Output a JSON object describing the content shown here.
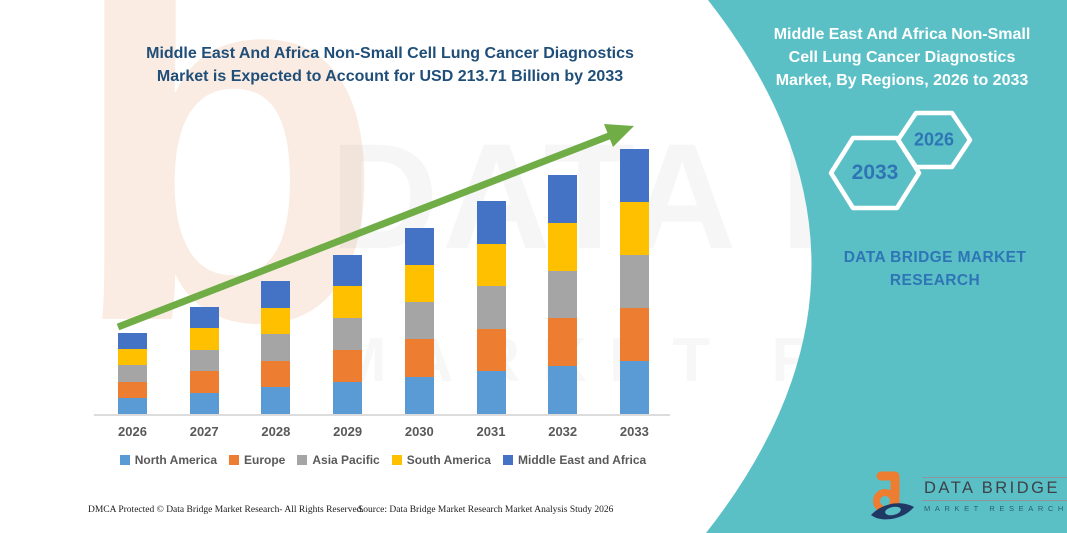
{
  "header": {
    "title_line1": "Middle East And Africa Non-Small Cell Lung Cancer Diagnostics",
    "title_line2": "Market is Expected to Account for USD 213.71 Billion by 2033",
    "title_color": "#1F4E79"
  },
  "chart_data": {
    "type": "bar",
    "stacked": true,
    "title": "Middle East And Africa Non-Small Cell Lung Cancer Diagnostics Market is Expected to Account for USD 213.71 Billion by 2033",
    "unit": "USD Billion",
    "categories": [
      "2026",
      "2027",
      "2028",
      "2029",
      "2030",
      "2031",
      "2032",
      "2033"
    ],
    "series": [
      {
        "name": "North America",
        "color": "#5B9BD5",
        "values": [
          13.0,
          17.2,
          21.4,
          25.6,
          30.0,
          34.2,
          38.4,
          42.7
        ]
      },
      {
        "name": "Europe",
        "color": "#ED7D31",
        "values": [
          13.0,
          17.2,
          21.4,
          25.6,
          30.0,
          34.2,
          38.4,
          42.7
        ]
      },
      {
        "name": "Asia Pacific",
        "color": "#A5A5A5",
        "values": [
          13.0,
          17.2,
          21.4,
          25.6,
          30.0,
          34.2,
          38.4,
          42.7
        ]
      },
      {
        "name": "South America",
        "color": "#FFC000",
        "values": [
          13.0,
          17.2,
          21.4,
          25.6,
          30.0,
          34.2,
          38.4,
          42.7
        ]
      },
      {
        "name": "Middle East and Africa",
        "color": "#4472C4",
        "values": [
          13.0,
          17.2,
          21.4,
          25.6,
          30.0,
          34.2,
          38.4,
          42.7
        ]
      }
    ],
    "totals_estimated": [
      65,
      86,
      107,
      128,
      150,
      171,
      192,
      213.71
    ],
    "highlight_value": "USD 213.71 Billion by 2033",
    "values_estimated_from_pixels": true,
    "legend_position": "bottom",
    "grid": false,
    "trend_arrow": true,
    "trend_arrow_color": "#70AD47",
    "axis_label_color": "#595959"
  },
  "side_panel": {
    "background_color": "#5BC0C6",
    "accent_color": "#2E75B6",
    "title_lines": [
      "Middle East And Africa Non-Small",
      "Cell Lung Cancer Diagnostics",
      "Market, By Regions, 2026 to 2033"
    ],
    "hexagons": [
      {
        "label": "2033"
      },
      {
        "label": "2026"
      }
    ],
    "brand_line1": "DATA BRIDGE MARKET",
    "brand_line2": "RESEARCH"
  },
  "logo": {
    "name": "DATA BRIDGE",
    "subtitle": "MARKET RESEARCH"
  },
  "watermark": {
    "letter": "b",
    "line1": "DATA BRIDGE",
    "line2": "MARKET RESEARCH"
  },
  "footer": {
    "left": "DMCA Protected © Data Bridge Market Research-  All Rights Reserved.",
    "source": "Source: Data Bridge Market Research  Market Analysis Study 2026"
  }
}
